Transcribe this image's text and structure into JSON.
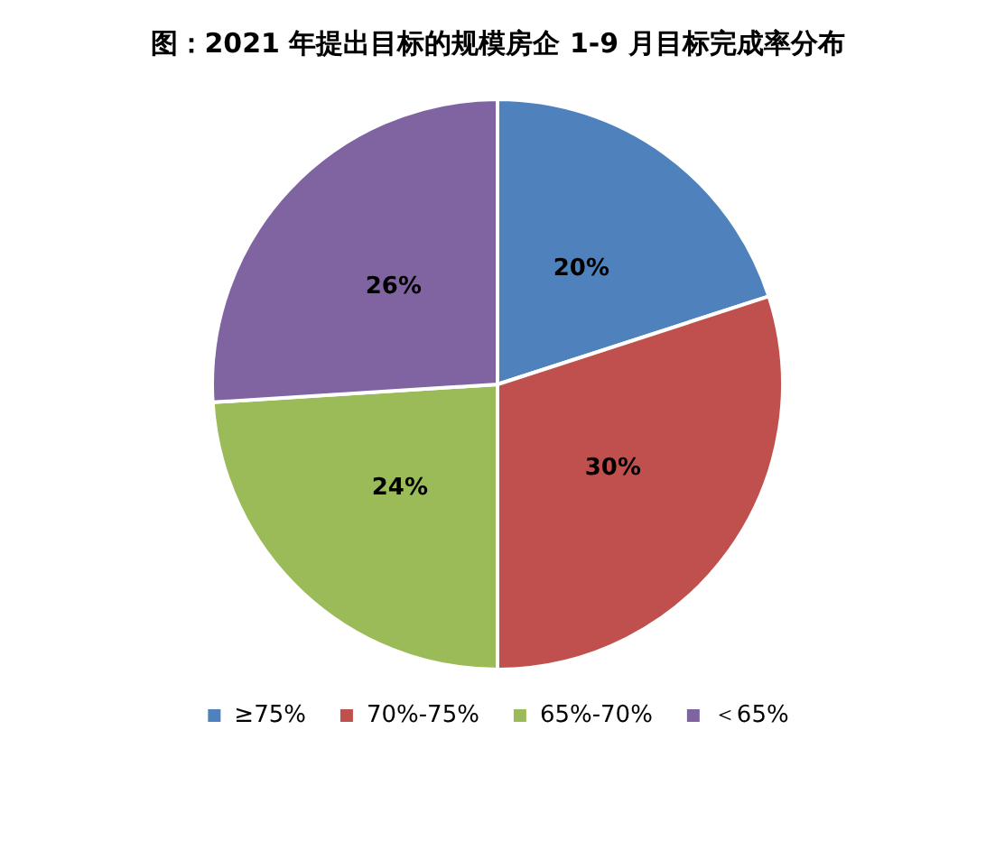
{
  "chart_data": {
    "type": "pie",
    "title": "图：2021 年提出目标的规模房企 1-9 月目标完成率分布",
    "categories": [
      "≥75%",
      "70%-75%",
      "65%-70%",
      "＜65%"
    ],
    "values": [
      20,
      30,
      24,
      26
    ],
    "value_labels": [
      "20%",
      "30%",
      "24%",
      "26%"
    ],
    "colors": [
      "#4f81bd",
      "#c0504d",
      "#9bbb59",
      "#8064a2"
    ],
    "legend": "bottom"
  }
}
